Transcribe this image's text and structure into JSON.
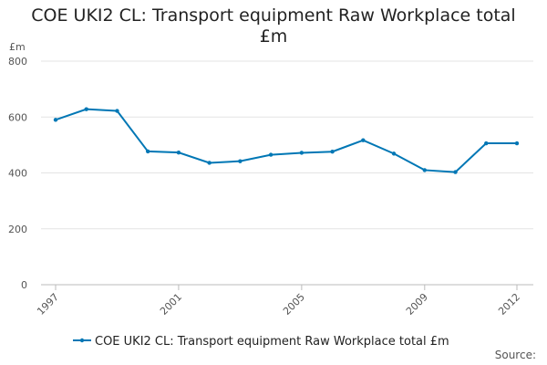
{
  "chart_data": {
    "type": "line",
    "title": "COE UKI2 CL: Transport equipment Raw Workplace total £m",
    "y_label": "£m",
    "source": "Source:",
    "x": [
      1997,
      1998,
      1999,
      2000,
      2001,
      2002,
      2003,
      2004,
      2005,
      2006,
      2007,
      2008,
      2009,
      2010,
      2011,
      2012
    ],
    "series": [
      {
        "name": "COE UKI2 CL: Transport equipment Raw Workplace total £m",
        "color": "#0077b5",
        "values": [
          590,
          628,
          622,
          477,
          473,
          436,
          442,
          465,
          472,
          476,
          517,
          469,
          410,
          403,
          506,
          506
        ]
      }
    ],
    "xlim": [
      1997,
      2012
    ],
    "xticks": [
      1997,
      2001,
      2005,
      2009,
      2012
    ],
    "ylim": [
      0,
      800
    ],
    "yticks": [
      0,
      200,
      400,
      600,
      800
    ],
    "grid": true
  }
}
